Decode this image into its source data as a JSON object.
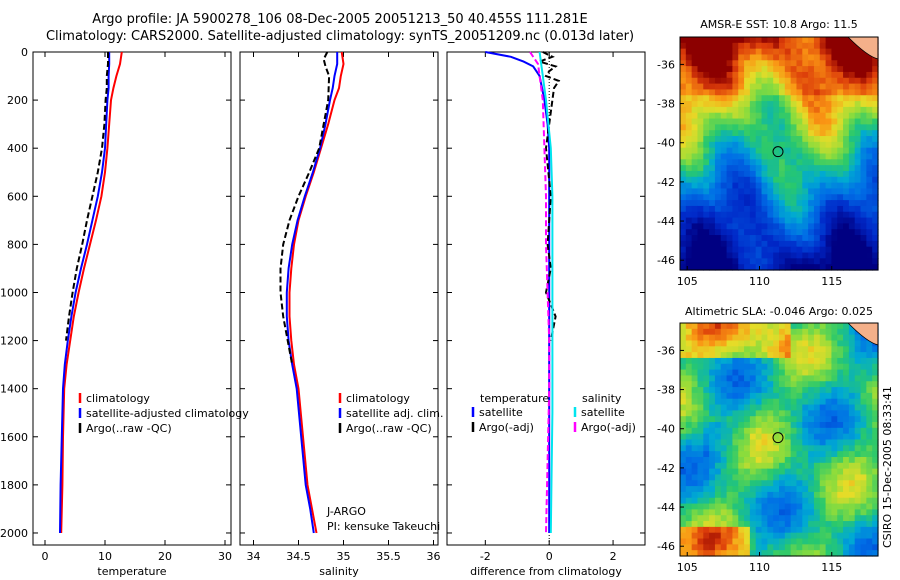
{
  "header": {
    "line1": "Argo profile: JA 5900278_106 08-Dec-2005 20051213_50 40.455S 111.281E",
    "line2": "Climatology: CARS2000. Satellite-adjusted climatology: synTS_20051209.nc (0.013d later)"
  },
  "chart_data": [
    {
      "type": "line",
      "id": "temperature",
      "xlabel": "temperature",
      "xlim": [
        -2,
        31
      ],
      "ylim": [
        2050,
        0
      ],
      "xticks": [
        "0",
        "10",
        "20",
        "30"
      ],
      "yticks": [
        "0",
        "200",
        "400",
        "600",
        "800",
        "1000",
        "1200",
        "1400",
        "1600",
        "1800",
        "2000"
      ],
      "legend": [
        "climatology",
        "satellite-adjusted climatology",
        "Argo(..raw -QC)"
      ],
      "series": [
        {
          "name": "climatology",
          "color": "#ff0000",
          "dash": "",
          "x": [
            12.8,
            12.5,
            11.9,
            11.4,
            11.0,
            10.7,
            10.4,
            10.0,
            9.4,
            8.5,
            7.5,
            6.5,
            5.6,
            4.8,
            4.2,
            3.6,
            3.2,
            3.0,
            2.9,
            2.8,
            2.7
          ],
          "y": [
            0,
            50,
            100,
            150,
            200,
            300,
            400,
            500,
            600,
            700,
            800,
            900,
            1000,
            1100,
            1200,
            1300,
            1400,
            1600,
            1800,
            1900,
            2000
          ]
        },
        {
          "name": "satellite-adjusted climatology",
          "color": "#0000ff",
          "dash": "",
          "x": [
            10.7,
            10.7,
            10.6,
            10.6,
            10.4,
            10.2,
            10.0,
            9.5,
            8.8,
            7.9,
            7.0,
            6.0,
            5.1,
            4.4,
            3.8,
            3.3,
            3.0,
            2.8,
            2.6,
            2.5
          ],
          "y": [
            0,
            50,
            100,
            150,
            200,
            300,
            400,
            500,
            600,
            700,
            800,
            900,
            1000,
            1100,
            1200,
            1300,
            1400,
            1600,
            1800,
            2000
          ]
        },
        {
          "name": "Argo(..raw -QC)",
          "color": "#000000",
          "dash": "6 3",
          "x": [
            10.5,
            10.5,
            10.3,
            10.3,
            10.1,
            9.9,
            9.5,
            8.8,
            7.9,
            7.0,
            6.2,
            5.3,
            4.6,
            4.0,
            3.5
          ],
          "y": [
            0,
            50,
            100,
            150,
            200,
            300,
            400,
            500,
            600,
            700,
            800,
            900,
            1000,
            1100,
            1200
          ]
        }
      ]
    },
    {
      "type": "line",
      "id": "salinity",
      "xlabel": "salinity",
      "xlim": [
        33.85,
        36.05
      ],
      "ylim": [
        2050,
        0
      ],
      "xticks": [
        "34",
        "34.5",
        "35",
        "35.5",
        "36"
      ],
      "legend": [
        "climatology",
        "satellite adj. clim.",
        "Argo(..raw -QC)"
      ],
      "annotation": [
        "J-ARGO",
        "PI: kensuke Takeuchi"
      ],
      "series": [
        {
          "name": "climatology",
          "color": "#ff0000",
          "dash": "",
          "x": [
            34.98,
            35.0,
            34.97,
            34.95,
            34.9,
            34.83,
            34.75,
            34.67,
            34.58,
            34.5,
            34.45,
            34.42,
            34.4,
            34.4,
            34.42,
            34.45,
            34.5,
            34.55,
            34.6,
            34.65,
            34.7
          ],
          "y": [
            0,
            50,
            100,
            150,
            200,
            300,
            400,
            500,
            600,
            700,
            800,
            900,
            1000,
            1100,
            1200,
            1300,
            1400,
            1600,
            1800,
            1900,
            2000
          ]
        },
        {
          "name": "satellite adj. clim.",
          "color": "#0000ff",
          "dash": "",
          "x": [
            34.93,
            34.93,
            34.9,
            34.88,
            34.85,
            34.8,
            34.74,
            34.66,
            34.57,
            34.49,
            34.43,
            34.39,
            34.37,
            34.37,
            34.39,
            34.43,
            34.48,
            34.53,
            34.58,
            34.63,
            34.67
          ],
          "y": [
            0,
            50,
            100,
            150,
            200,
            300,
            400,
            500,
            600,
            700,
            800,
            900,
            1000,
            1100,
            1200,
            1300,
            1400,
            1600,
            1800,
            1900,
            2000
          ]
        },
        {
          "name": "Argo(..raw -QC)",
          "color": "#000000",
          "dash": "6 3",
          "x": [
            34.82,
            34.78,
            34.8,
            34.84,
            34.83,
            34.78,
            34.73,
            34.62,
            34.5,
            34.4,
            34.33,
            34.3,
            34.3,
            34.33,
            34.38,
            34.43
          ],
          "y": [
            0,
            30,
            60,
            100,
            200,
            300,
            400,
            500,
            600,
            700,
            800,
            900,
            1000,
            1100,
            1200,
            1300
          ]
        }
      ]
    },
    {
      "type": "line",
      "id": "difference",
      "xlabel": "difference from climatology",
      "xlim": [
        -3.2,
        3.0
      ],
      "ylim": [
        2050,
        0
      ],
      "xticks": [
        "-2",
        "0",
        "2"
      ],
      "legend_left": [
        "temperature",
        "satellite",
        "Argo(-adj)"
      ],
      "legend_right": [
        "salinity",
        "satellite",
        "Argo(-adj)"
      ],
      "series": [
        {
          "name": "temperature satellite",
          "color": "#0000ff",
          "dash": "",
          "x": [
            -2.0,
            -1.2,
            -0.8,
            -0.5,
            -0.3,
            -0.15,
            -0.05,
            0,
            0,
            0,
            0,
            0,
            0
          ],
          "y": [
            0,
            20,
            40,
            60,
            100,
            200,
            300,
            400,
            600,
            800,
            1200,
            1600,
            2000
          ]
        },
        {
          "name": "temperature Argo(-adj)",
          "color": "#000000",
          "dash": "6 3",
          "x": [
            -0.2,
            0.1,
            -0.3,
            0.2,
            0.0,
            -0.1,
            0.3,
            0.15,
            0.1,
            0.0,
            -0.1,
            0.05,
            -0.05,
            0.05,
            -0.1,
            0.2,
            0.05
          ],
          "y": [
            0,
            20,
            40,
            60,
            80,
            100,
            120,
            150,
            200,
            300,
            400,
            600,
            800,
            900,
            1000,
            1100,
            1200
          ]
        },
        {
          "name": "salinity satellite",
          "color": "#00e5ee",
          "dash": "",
          "x": [
            -0.3,
            -0.2,
            -0.1,
            0.05,
            0.1,
            0.1,
            0.1,
            0.1,
            0.05
          ],
          "y": [
            0,
            100,
            200,
            400,
            600,
            800,
            1000,
            1500,
            2000
          ]
        },
        {
          "name": "salinity Argo(-adj)",
          "color": "#ff00ff",
          "dash": "6 3",
          "x": [
            -0.6,
            -0.35,
            -0.3,
            -0.2,
            -0.15,
            -0.1,
            -0.1,
            -0.05,
            0,
            0,
            -0.05,
            -0.1
          ],
          "y": [
            0,
            50,
            100,
            200,
            400,
            600,
            800,
            1000,
            1200,
            1400,
            1700,
            2000
          ]
        }
      ]
    },
    {
      "type": "heatmap",
      "id": "sst_map",
      "title": "AMSR-E SST: 10.8  Argo: 11.5",
      "xticks": [
        "105",
        "110",
        "115"
      ],
      "yticks": [
        "-36",
        "-38",
        "-40",
        "-42",
        "-44",
        "-46"
      ],
      "xlim": [
        104.5,
        118.2
      ],
      "ylim": [
        -46.5,
        -34.6
      ],
      "marker": {
        "lon": 111.281,
        "lat": -40.455
      }
    },
    {
      "type": "heatmap",
      "id": "sla_map",
      "title": "Altimetric SLA: -0.046  Argo: 0.025",
      "xticks": [
        "105",
        "110",
        "115"
      ],
      "yticks": [
        "-36",
        "-38",
        "-40",
        "-42",
        "-44",
        "-46"
      ],
      "xlim": [
        104.5,
        118.2
      ],
      "ylim": [
        -46.5,
        -34.6
      ],
      "marker": {
        "lon": 111.281,
        "lat": -40.455
      }
    }
  ],
  "footer": {
    "stamp": "CSIRO 15-Dec-2005 08:33:41"
  }
}
